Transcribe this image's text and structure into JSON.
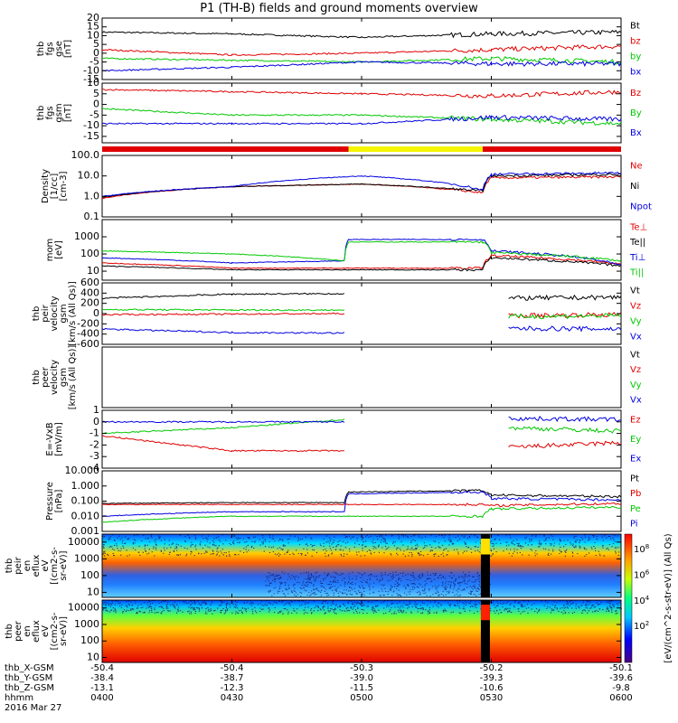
{
  "title": "P1 (TH-B) fields and ground moments overview",
  "date_label": "2016 Mar 27",
  "mode_bar_colors": [
    "#e00000",
    "#f5f500",
    "#e00000"
  ],
  "mode_bar_breaks": [
    "04:57",
    "05:28"
  ],
  "colorbar": {
    "ticks": [
      "10",
      "10",
      "10",
      "10",
      "10"
    ],
    "tick_exps": [
      "8",
      "6",
      "4",
      "2",
      ""
    ],
    "label": "[eV/(cm^2-s-str-eV)] (All Qs)",
    "label_stack": [
      "eV",
      "(cm²-s-",
      "str-eV)",
      "(All Qs)"
    ]
  },
  "time_axis": {
    "row_labels": [
      "thb_X-GSM",
      "thb_Y-GSM",
      "thb_Z-GSM",
      "hhmm"
    ],
    "columns": [
      {
        "time": "04:00",
        "x": "-50.4",
        "y": "-38.4",
        "z": "-13.1",
        "hhmm": "0400"
      },
      {
        "time": "04:30",
        "x": "-50.4",
        "y": "-38.7",
        "z": "-12.3",
        "hhmm": "0430"
      },
      {
        "time": "05:00",
        "x": "-50.3",
        "y": "-39.0",
        "z": "-11.5",
        "hhmm": "0500"
      },
      {
        "time": "05:30",
        "x": "-50.2",
        "y": "-39.3",
        "z": "-10.6",
        "hhmm": "0530"
      },
      {
        "time": "06:00",
        "x": "-50.1",
        "y": "-39.6",
        "z": "-9.8",
        "hhmm": "0600"
      }
    ]
  },
  "chart_data": [
    {
      "type": "line",
      "panel": "fgs-gse",
      "ylabel": [
        "thb",
        "fgs",
        "gse",
        "[nT]"
      ],
      "ylim": [
        -15,
        20
      ],
      "yticks": [
        "20",
        "15",
        "10",
        "5",
        "0",
        "-5",
        "-10",
        "-15"
      ],
      "legend": [
        {
          "name": "Bt",
          "color": "#000000"
        },
        {
          "name": "bz",
          "color": "#e00000"
        },
        {
          "name": "by",
          "color": "#00c800"
        },
        {
          "name": "bx",
          "color": "#0000e0"
        }
      ],
      "x": [
        "04:00",
        "04:30",
        "05:00",
        "05:30",
        "06:00"
      ],
      "series": [
        {
          "name": "Bt",
          "values": [
            12,
            11,
            9,
            11,
            12
          ]
        },
        {
          "name": "bz",
          "values": [
            2,
            -1,
            0,
            2,
            4
          ]
        },
        {
          "name": "by",
          "values": [
            -3,
            -4,
            -5,
            -3,
            -5
          ]
        },
        {
          "name": "bx",
          "values": [
            -10,
            -8,
            -5,
            -6,
            -6
          ]
        }
      ]
    },
    {
      "type": "line",
      "panel": "fgs-gsm",
      "ylabel": [
        "thb",
        "fgs",
        "gsm",
        "[nT]"
      ],
      "ylim": [
        -18,
        10
      ],
      "yticks": [
        "10",
        "5",
        "0",
        "-5",
        "-10",
        "-15"
      ],
      "legend": [
        {
          "name": "Bz",
          "color": "#e00000"
        },
        {
          "name": "By",
          "color": "#00c800"
        },
        {
          "name": "Bx",
          "color": "#0000e0"
        }
      ],
      "x": [
        "04:00",
        "04:30",
        "05:00",
        "05:30",
        "06:00"
      ],
      "series": [
        {
          "name": "Bz",
          "values": [
            7,
            6,
            5,
            4,
            6
          ]
        },
        {
          "name": "By",
          "values": [
            -2,
            -5,
            -5,
            -7,
            -9
          ]
        },
        {
          "name": "Bx",
          "values": [
            -9,
            -9,
            -9,
            -6,
            -7
          ]
        }
      ]
    },
    {
      "type": "line",
      "panel": "density",
      "ylabel": [
        "Density",
        "[1/cc]",
        "[cm-3]"
      ],
      "scale": "log",
      "ylim": [
        0.1,
        100
      ],
      "yticks": [
        "100.0",
        "10.0",
        "1.0",
        "0.1"
      ],
      "legend": [
        {
          "name": "Ne",
          "color": "#e00000"
        },
        {
          "name": "Ni",
          "color": "#000000"
        },
        {
          "name": "Npot",
          "color": "#0000e0"
        }
      ],
      "x": [
        "04:00",
        "04:30",
        "05:00",
        "05:28",
        "05:30",
        "06:00"
      ],
      "series": [
        {
          "name": "Ne",
          "values": [
            0.8,
            3,
            4,
            1.5,
            8,
            9
          ]
        },
        {
          "name": "Ni",
          "values": [
            0.9,
            3,
            4,
            1.8,
            10,
            12
          ]
        },
        {
          "name": "Npot",
          "values": [
            1,
            3,
            10,
            2,
            12,
            14
          ]
        }
      ]
    },
    {
      "type": "line",
      "panel": "moments-temp",
      "ylabel": [
        "mom",
        "[eV]"
      ],
      "scale": "log",
      "ylim": [
        3,
        10000
      ],
      "yticks": [
        "1000",
        "100",
        "10"
      ],
      "legend": [
        {
          "name": "Te⊥",
          "color": "#e00000"
        },
        {
          "name": "Te||",
          "color": "#000000"
        },
        {
          "name": "Ti⊥",
          "color": "#0000e0"
        },
        {
          "name": "Ti||",
          "color": "#00c800"
        }
      ],
      "x": [
        "04:00",
        "04:30",
        "04:56",
        "04:57",
        "05:28",
        "05:30",
        "06:00"
      ],
      "series": [
        {
          "name": "Te⊥",
          "values": [
            30,
            15,
            15,
            15,
            15,
            80,
            25
          ]
        },
        {
          "name": "Te||",
          "values": [
            20,
            12,
            12,
            12,
            12,
            60,
            20
          ]
        },
        {
          "name": "Ti⊥",
          "values": [
            60,
            30,
            40,
            700,
            700,
            150,
            20
          ]
        },
        {
          "name": "Ti||",
          "values": [
            150,
            100,
            40,
            500,
            500,
            120,
            40
          ]
        }
      ]
    },
    {
      "type": "line",
      "panel": "peir-velocity",
      "ylabel": [
        "thb",
        "peir",
        "velocity",
        "gsm",
        "[km/s (All Qs)]"
      ],
      "ylim": [
        -600,
        600
      ],
      "yticks": [
        "600",
        "400",
        "200",
        "0",
        "-200",
        "-400",
        "-600"
      ],
      "legend": [
        {
          "name": "Vt",
          "color": "#000000"
        },
        {
          "name": "Vz",
          "color": "#e00000"
        },
        {
          "name": "Vy",
          "color": "#00c800"
        },
        {
          "name": "Vx",
          "color": "#0000e0"
        }
      ],
      "x": [
        "04:00",
        "04:30",
        "04:56",
        "05:34",
        "06:00"
      ],
      "series": [
        {
          "name": "Vt",
          "values": [
            300,
            380,
            390,
            300,
            320
          ]
        },
        {
          "name": "Vz",
          "values": [
            -20,
            -10,
            0,
            -40,
            -20
          ]
        },
        {
          "name": "Vy",
          "values": [
            80,
            70,
            70,
            -60,
            -40
          ]
        },
        {
          "name": "Vx",
          "values": [
            -300,
            -370,
            -380,
            -290,
            -300
          ]
        }
      ]
    },
    {
      "type": "line",
      "panel": "peer-velocity",
      "ylabel": [
        "thb",
        "peer",
        "velocity",
        "gsm",
        "[km/s (All Qs)]"
      ],
      "ylim": [
        -600,
        600
      ],
      "yticks": [],
      "legend": [
        {
          "name": "Vt",
          "color": "#000000"
        },
        {
          "name": "Vz",
          "color": "#e00000"
        },
        {
          "name": "Vy",
          "color": "#00c800"
        },
        {
          "name": "Vx",
          "color": "#0000e0"
        }
      ],
      "series": []
    },
    {
      "type": "line",
      "panel": "e-field",
      "ylabel": [
        "E=-VxB",
        "[mV/m]"
      ],
      "ylim": [
        -4,
        1
      ],
      "yticks": [
        "1",
        "0",
        "-1",
        "-2",
        "-3",
        "-4"
      ],
      "legend": [
        {
          "name": "Ez",
          "color": "#e00000"
        },
        {
          "name": "Ey",
          "color": "#00c800"
        },
        {
          "name": "Ex",
          "color": "#0000e0"
        }
      ],
      "x": [
        "04:00",
        "04:30",
        "04:56",
        "05:34",
        "06:00"
      ],
      "series": [
        {
          "name": "Ez",
          "values": [
            -1.2,
            -2.5,
            -2.5,
            -2.2,
            -1.8
          ]
        },
        {
          "name": "Ey",
          "values": [
            -1,
            -0.5,
            0.2,
            -0.5,
            -0.8
          ]
        },
        {
          "name": "Ex",
          "values": [
            0,
            0,
            0,
            0.3,
            0.2
          ]
        }
      ]
    },
    {
      "type": "line",
      "panel": "pressure",
      "ylabel": [
        "Pressure",
        "[nPa]"
      ],
      "scale": "log",
      "ylim": [
        0.001,
        10
      ],
      "yticks": [
        "10.000",
        "1.000",
        "0.100",
        "0.010",
        "0.001"
      ],
      "legend": [
        {
          "name": "Pt",
          "color": "#000000"
        },
        {
          "name": "Pb",
          "color": "#e00000"
        },
        {
          "name": "Pe",
          "color": "#00c800"
        },
        {
          "name": "Pi",
          "color": "#0000e0"
        }
      ],
      "x": [
        "04:00",
        "04:30",
        "04:56",
        "04:57",
        "05:28",
        "05:30",
        "06:00"
      ],
      "series": [
        {
          "name": "Pt",
          "values": [
            0.07,
            0.08,
            0.08,
            0.4,
            0.5,
            0.25,
            0.2
          ]
        },
        {
          "name": "Pb",
          "values": [
            0.06,
            0.06,
            0.06,
            0.06,
            0.06,
            0.05,
            0.07
          ]
        },
        {
          "name": "Pe",
          "values": [
            0.004,
            0.01,
            0.01,
            0.01,
            0.01,
            0.03,
            0.04
          ]
        },
        {
          "name": "Pi",
          "values": [
            0.01,
            0.02,
            0.02,
            0.3,
            0.4,
            0.15,
            0.12
          ]
        }
      ]
    },
    {
      "type": "heatmap",
      "panel": "peir-spectrogram",
      "ylabel": [
        "thb",
        "peir",
        "en",
        "eflux",
        "eV",
        "[(cm2-s-",
        "sr-eV)]"
      ],
      "scale": "log",
      "ylim": [
        5,
        30000
      ],
      "yticks": [
        "10000",
        "1000",
        "100",
        "10"
      ]
    },
    {
      "type": "heatmap",
      "panel": "peer-spectrogram",
      "ylabel": [
        "thb",
        "peer",
        "en",
        "eflux",
        "eV",
        "[(cm2-s-",
        "sr-eV)]"
      ],
      "scale": "log",
      "ylim": [
        5,
        30000
      ],
      "yticks": [
        "10000",
        "1000",
        "100",
        "10"
      ]
    }
  ]
}
